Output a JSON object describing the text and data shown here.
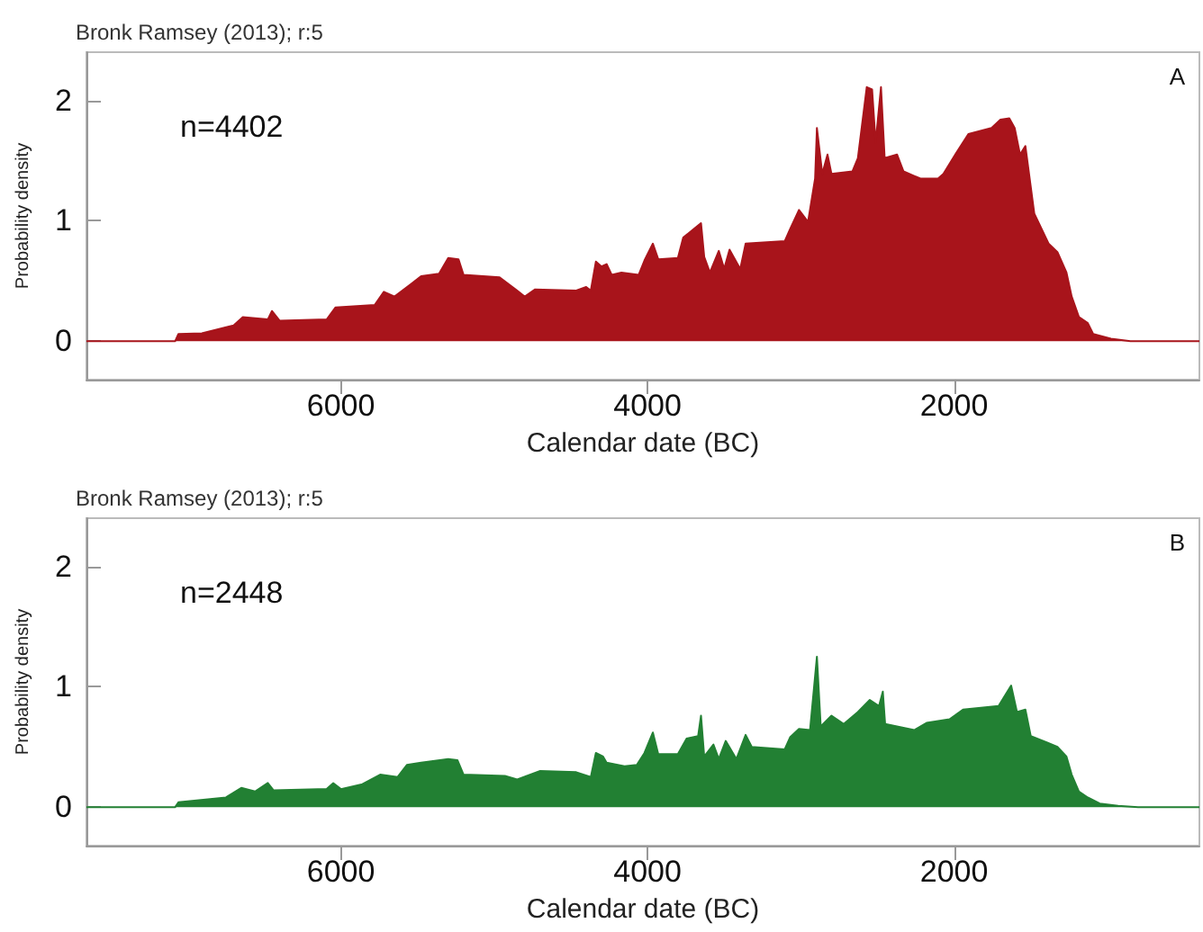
{
  "chart_data": [
    {
      "type": "area",
      "title": "Bronk Ramsey (2013); r:5",
      "xlabel": "Calendar date (BC)",
      "ylabel": "Probability density",
      "annotations": [
        "n=4402",
        "A"
      ],
      "xlim": [
        7660,
        400
      ],
      "xticks": [
        6000,
        4000,
        2000
      ],
      "ylim": [
        -0.32,
        2.4
      ],
      "yticks": [
        0,
        1,
        2
      ],
      "x": [
        7660,
        7081,
        7060,
        6907,
        6700,
        6640,
        6477,
        6450,
        6400,
        6093,
        6035,
        5780,
        5720,
        5650,
        5547,
        5477,
        5360,
        5300,
        5233,
        5200,
        4965,
        4850,
        4800,
        4733,
        4465,
        4400,
        4370,
        4337,
        4300,
        4267,
        4233,
        4170,
        4058,
        4020,
        3965,
        3930,
        3802,
        3767,
        3651,
        3630,
        3593,
        3535,
        3500,
        3465,
        3395,
        3360,
        3105,
        3070,
        3012,
        2953,
        2907,
        2895,
        2860,
        2826,
        2800,
        2663,
        2628,
        2570,
        2535,
        2512,
        2477,
        2453,
        2372,
        2330,
        2220,
        2105,
        2070,
        1988,
        1907,
        1756,
        1698,
        1640,
        1605,
        1570,
        1535,
        1477,
        1384,
        1326,
        1267,
        1233,
        1186,
        1128,
        1093,
        977,
        850,
        400
      ],
      "series": [
        {
          "color": "#a8141b",
          "values": [
            0,
            0,
            0.06,
            0.065,
            0.13,
            0.2,
            0.18,
            0.25,
            0.17,
            0.18,
            0.28,
            0.3,
            0.41,
            0.37,
            0.47,
            0.54,
            0.56,
            0.69,
            0.68,
            0.55,
            0.53,
            0.42,
            0.37,
            0.43,
            0.42,
            0.45,
            0.42,
            0.66,
            0.62,
            0.64,
            0.55,
            0.57,
            0.55,
            0.67,
            0.81,
            0.68,
            0.69,
            0.86,
            0.98,
            0.7,
            0.57,
            0.75,
            0.6,
            0.76,
            0.6,
            0.81,
            0.83,
            0.93,
            1.09,
            0.99,
            1.35,
            1.77,
            1.39,
            1.55,
            1.39,
            1.41,
            1.52,
            2.11,
            2.09,
            1.65,
            2.11,
            1.52,
            1.55,
            1.41,
            1.35,
            1.35,
            1.39,
            1.56,
            1.72,
            1.77,
            1.84,
            1.85,
            1.77,
            1.55,
            1.62,
            1.06,
            0.81,
            0.74,
            0.57,
            0.37,
            0.2,
            0.15,
            0.06,
            0.02,
            0,
            0
          ]
        }
      ]
    },
    {
      "type": "area",
      "title": "Bronk Ramsey (2013); r:5",
      "xlabel": "Calendar date (BC)",
      "ylabel": "Probability density",
      "annotations": [
        "n=2448",
        "B"
      ],
      "xlim": [
        7660,
        400
      ],
      "xticks": [
        6000,
        4000,
        2000
      ],
      "ylim": [
        -0.32,
        2.4
      ],
      "yticks": [
        0,
        1,
        2
      ],
      "x": [
        7660,
        7081,
        7060,
        6750,
        6650,
        6560,
        6477,
        6440,
        6093,
        6050,
        6000,
        5860,
        5744,
        5630,
        5570,
        5477,
        5300,
        5240,
        5200,
        4930,
        4850,
        4700,
        4465,
        4370,
        4337,
        4290,
        4267,
        4150,
        4070,
        4020,
        3965,
        3930,
        3802,
        3745,
        3670,
        3651,
        3630,
        3570,
        3535,
        3490,
        3420,
        3360,
        3320,
        3105,
        3070,
        3012,
        2940,
        2895,
        2870,
        2800,
        2720,
        2628,
        2550,
        2490,
        2465,
        2450,
        2260,
        2180,
        2030,
        1942,
        1710,
        1628,
        1590,
        1535,
        1500,
        1400,
        1326,
        1267,
        1233,
        1186,
        1128,
        1050,
        930,
        800,
        400
      ],
      "series": [
        {
          "color": "#228033",
          "values": [
            0,
            0,
            0.04,
            0.08,
            0.16,
            0.13,
            0.2,
            0.14,
            0.15,
            0.2,
            0.15,
            0.19,
            0.27,
            0.25,
            0.35,
            0.37,
            0.4,
            0.39,
            0.27,
            0.26,
            0.23,
            0.3,
            0.29,
            0.25,
            0.45,
            0.42,
            0.37,
            0.34,
            0.35,
            0.45,
            0.62,
            0.44,
            0.44,
            0.57,
            0.59,
            0.76,
            0.42,
            0.52,
            0.4,
            0.55,
            0.4,
            0.6,
            0.5,
            0.48,
            0.58,
            0.65,
            0.64,
            1.25,
            0.67,
            0.76,
            0.69,
            0.79,
            0.89,
            0.84,
            0.96,
            0.69,
            0.64,
            0.7,
            0.73,
            0.81,
            0.84,
            1.01,
            0.79,
            0.81,
            0.59,
            0.54,
            0.5,
            0.42,
            0.27,
            0.13,
            0.08,
            0.03,
            0.01,
            0,
            0
          ]
        }
      ]
    }
  ]
}
